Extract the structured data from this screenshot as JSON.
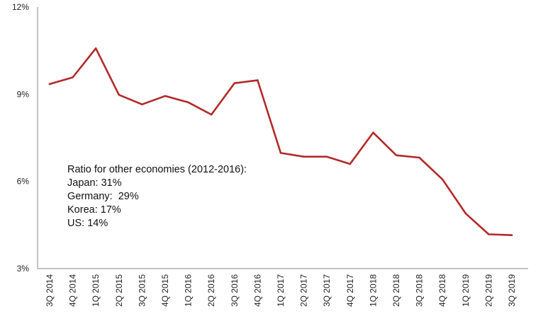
{
  "chart_data": {
    "type": "line",
    "categories": [
      "3Q 2014",
      "4Q 2014",
      "1Q 2015",
      "2Q 2015",
      "3Q 2015",
      "4Q 2015",
      "1Q 2016",
      "2Q 2016",
      "3Q 2016",
      "4Q 2016",
      "1Q 2017",
      "2Q 2017",
      "3Q 2017",
      "4Q 2017",
      "1Q 2018",
      "2Q 2018",
      "3Q 2018",
      "4Q 2018",
      "1Q 2019",
      "2Q 2019",
      "3Q 2019"
    ],
    "series": [
      {
        "values": [
          9.35,
          9.58,
          10.58,
          8.98,
          8.65,
          8.94,
          8.72,
          8.3,
          9.38,
          9.48,
          6.98,
          6.85,
          6.85,
          6.6,
          7.68,
          6.9,
          6.82,
          6.07,
          4.9,
          4.18,
          4.15
        ]
      }
    ],
    "y_ticks": [
      "3%",
      "6%",
      "9%",
      "12%"
    ],
    "ylim": [
      3,
      12
    ],
    "grid": false,
    "line_color": "#b22a2a",
    "annotation": {
      "title": "Ratio for other economies (2012-2016):",
      "lines": [
        "Japan: 31%",
        "Germany:  29%",
        "Korea: 17%",
        "US: 14%"
      ]
    }
  }
}
